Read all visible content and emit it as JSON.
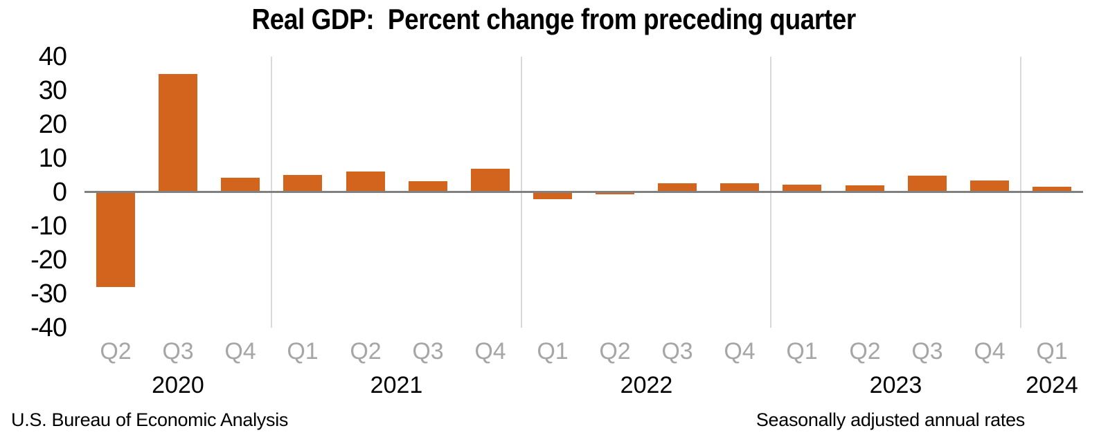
{
  "title": "Real GDP:  Percent change from preceding quarter",
  "footer": {
    "left": "U.S. Bureau of Economic Analysis",
    "right": "Seasonally adjusted annual rates"
  },
  "chart_data": {
    "type": "bar",
    "title": "Real GDP:  Percent change from preceding quarter",
    "categories": [
      "2020 Q2",
      "2020 Q3",
      "2020 Q4",
      "2021 Q1",
      "2021 Q2",
      "2021 Q3",
      "2021 Q4",
      "2022 Q1",
      "2022 Q2",
      "2022 Q3",
      "2022 Q4",
      "2023 Q1",
      "2023 Q2",
      "2023 Q3",
      "2023 Q4",
      "2024 Q1"
    ],
    "quarter_labels": [
      "Q2",
      "Q3",
      "Q4",
      "Q1",
      "Q2",
      "Q3",
      "Q4",
      "Q1",
      "Q2",
      "Q3",
      "Q4",
      "Q1",
      "Q2",
      "Q3",
      "Q4",
      "Q1"
    ],
    "values": [
      -28.0,
      34.8,
      4.2,
      5.2,
      6.2,
      3.3,
      7.0,
      -2.0,
      -0.6,
      2.7,
      2.6,
      2.2,
      2.1,
      4.9,
      3.4,
      1.6
    ],
    "year_groups": [
      {
        "label": "2020",
        "quarters": 3
      },
      {
        "label": "2021",
        "quarters": 4
      },
      {
        "label": "2022",
        "quarters": 4
      },
      {
        "label": "2023",
        "quarters": 4
      },
      {
        "label": "2024",
        "quarters": 1
      }
    ],
    "yticks": [
      40,
      30,
      20,
      10,
      0,
      -10,
      -20,
      -30,
      -40
    ],
    "ylim": [
      -40,
      40
    ],
    "grid": "vertical light-gray separators between year groups; no horizontal gridlines",
    "legend": "none",
    "colors": {
      "bar": "#D2641E",
      "zero_line": "#808080",
      "year_separator": "#D9D9D9",
      "quarter_label": "#A6A6A6",
      "text": "#000000"
    }
  }
}
